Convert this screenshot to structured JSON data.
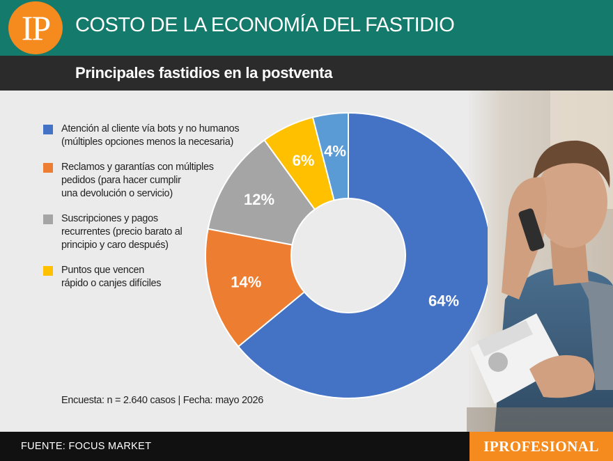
{
  "header": {
    "logo": "IP",
    "title": "COSTO DE LA ECONOMÍA DEL FASTIDIO"
  },
  "subheader": {
    "title": "Principales fastidios en la postventa"
  },
  "colors": {
    "header": "#147a6b",
    "brand": "#f58a1f",
    "footer": "#111111"
  },
  "legend": [
    {
      "label": "Atención al cliente vía bots y no humanos\n(múltiples opciones menos la necesaria)",
      "color": "#4472c4"
    },
    {
      "label": "Reclamos y garantías con múltiples\npedidos (para hacer cumplir\nuna devolución o servicio)",
      "color": "#ed7d31"
    },
    {
      "label": "Suscripciones y pagos\nrecurrentes (precio barato al\nprincipio y caro después)",
      "color": "#a5a5a5"
    },
    {
      "label": "Puntos que vencen\nrápido o canjes difíciles",
      "color": "#ffc000"
    }
  ],
  "chart_data": {
    "type": "pie",
    "style": "donut",
    "title": "Principales fastidios en la postventa",
    "categories": [
      "Atención al cliente vía bots y no humanos (múltiples opciones menos la necesaria)",
      "Reclamos y garantías con múltiples pedidos (para hacer cumplir una devolución o servicio)",
      "Suscripciones y pagos recurrentes (precio barato al principio y caro después)",
      "Puntos que vencen rápido o canjes difíciles",
      ""
    ],
    "values": [
      64,
      14,
      12,
      6,
      4
    ],
    "labels": [
      "64%",
      "14%",
      "12%",
      "6%",
      "4%"
    ],
    "colors": [
      "#4472c4",
      "#ed7d31",
      "#a5a5a5",
      "#ffc000",
      "#5b9bd5"
    ],
    "legend_position": "left"
  },
  "note": "Encuesta: n = 2.640 casos | Fecha: mayo 2026",
  "footer": {
    "source": "FUENTE: FOCUS MARKET",
    "brand": "IPROFESIONAL"
  }
}
